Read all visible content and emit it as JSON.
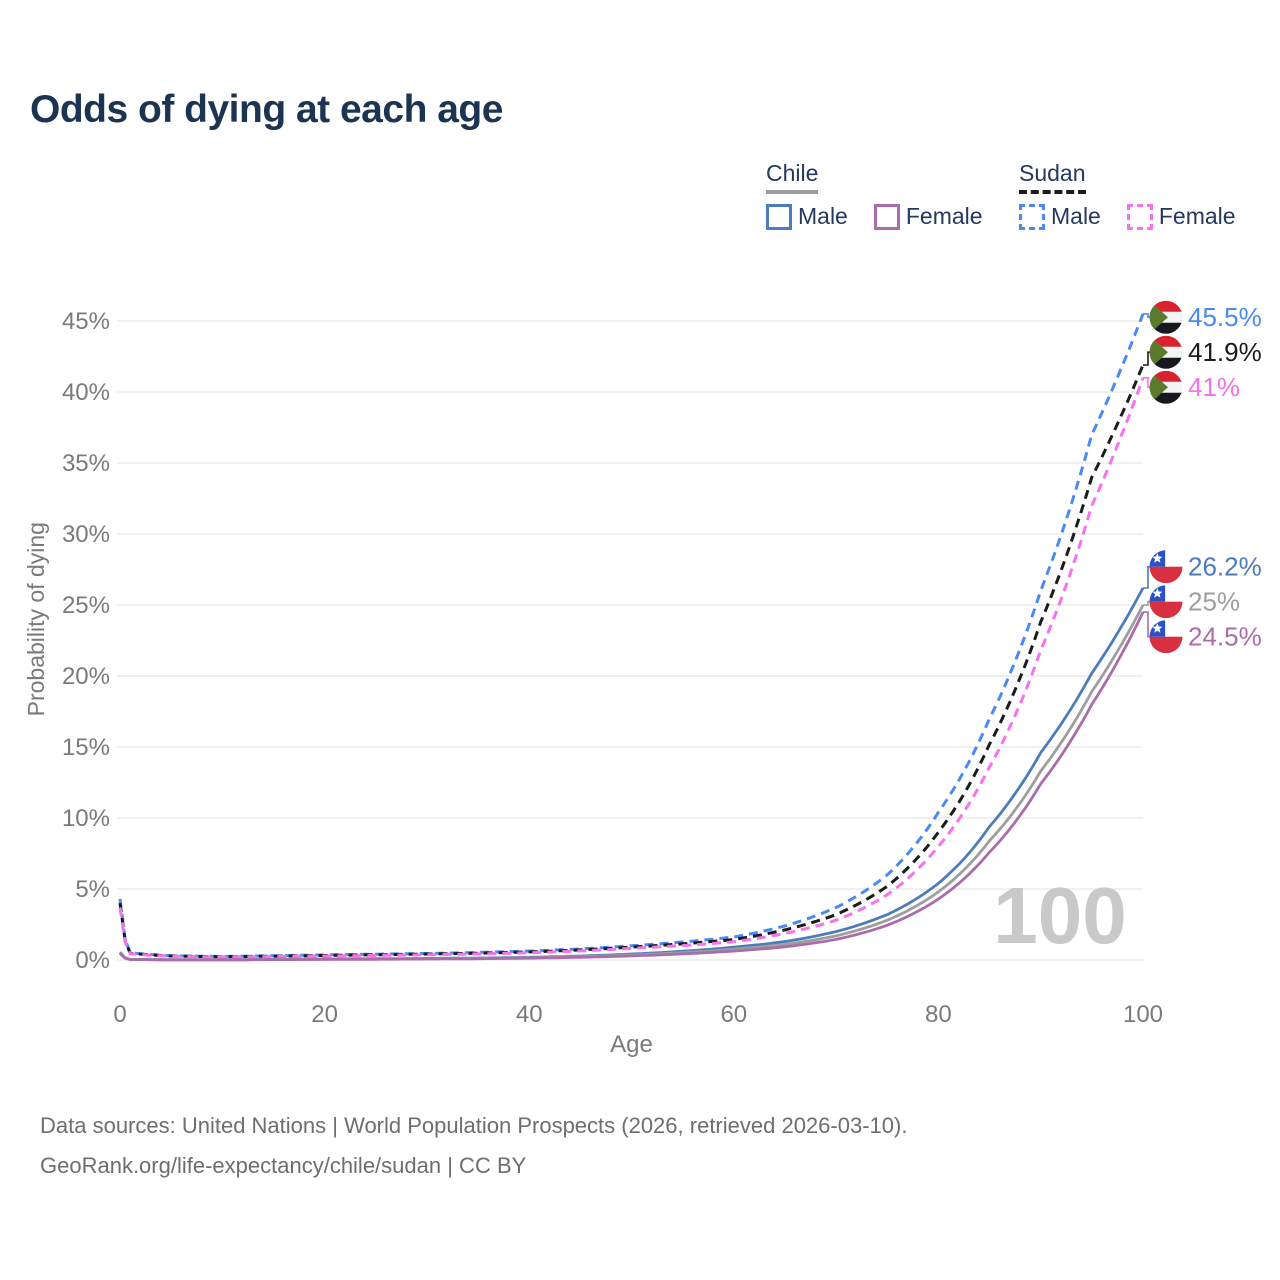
{
  "title": "Odds of dying at each age",
  "watermark": "100",
  "legend": {
    "groups": [
      {
        "name": "Chile",
        "line_style": "solid",
        "items": [
          {
            "label": "Male",
            "color": "#4d7cba"
          },
          {
            "label": "Female",
            "color": "#a96daa"
          }
        ]
      },
      {
        "name": "Sudan",
        "line_style": "dashed",
        "items": [
          {
            "label": "Male",
            "color": "#4a8af4"
          },
          {
            "label": "Female",
            "color": "#f772ec"
          }
        ]
      }
    ]
  },
  "footer": {
    "line1": "Data sources: United Nations | World Population Prospects (2026, retrieved 2026-03-10).",
    "line2": "GeoRank.org/life-expectancy/chile/sudan | CC BY"
  },
  "chart_data": {
    "type": "line",
    "title": "Odds of dying at each age",
    "xlabel": "Age",
    "ylabel": "Probability of dying",
    "xlim": [
      0,
      100
    ],
    "ylim": [
      0,
      45
    ],
    "x_ticks": [
      0,
      20,
      40,
      60,
      80,
      100
    ],
    "y_ticks": [
      0,
      5,
      10,
      15,
      20,
      25,
      30,
      35,
      40,
      45
    ],
    "y_tick_suffix": "%",
    "grid": "horizontal",
    "legend_position": "top-right",
    "ages": [
      0,
      1,
      5,
      10,
      15,
      20,
      25,
      30,
      35,
      40,
      45,
      50,
      55,
      60,
      65,
      70,
      75,
      80,
      85,
      90,
      95,
      100
    ],
    "series": [
      {
        "id": "sudan-male",
        "name": "Sudan Male",
        "country": "Sudan",
        "sex": "Male",
        "color": "#4a8af4",
        "dash": "dashed",
        "flag": "sudan",
        "end_label": "45.5%",
        "values": [
          4.3,
          0.5,
          0.3,
          0.25,
          0.3,
          0.36,
          0.41,
          0.46,
          0.53,
          0.63,
          0.78,
          1.0,
          1.27,
          1.62,
          2.4,
          3.7,
          6.0,
          10.4,
          17.0,
          26.0,
          37.0,
          45.5
        ]
      },
      {
        "id": "sudan-combined",
        "name": "Sudan Both sexes",
        "country": "Sudan",
        "sex": "Combined",
        "color": "#1b1b1b",
        "dash": "dashed",
        "flag": "sudan",
        "end_label": "41.9%",
        "values": [
          4.0,
          0.47,
          0.28,
          0.23,
          0.27,
          0.32,
          0.37,
          0.42,
          0.48,
          0.57,
          0.71,
          0.91,
          1.14,
          1.44,
          2.12,
          3.2,
          5.2,
          9.0,
          15.2,
          23.8,
          34.0,
          41.9
        ]
      },
      {
        "id": "sudan-female",
        "name": "Sudan Female",
        "country": "Sudan",
        "sex": "Female",
        "color": "#f772ec",
        "dash": "dashed",
        "flag": "sudan",
        "end_label": "41%",
        "values": [
          3.7,
          0.44,
          0.26,
          0.21,
          0.24,
          0.28,
          0.32,
          0.37,
          0.43,
          0.51,
          0.64,
          0.82,
          1.02,
          1.28,
          1.87,
          2.8,
          4.6,
          8.0,
          13.6,
          21.8,
          32.0,
          41.0
        ]
      },
      {
        "id": "chile-male",
        "name": "Chile Male",
        "country": "Chile",
        "sex": "Male",
        "color": "#4d7cba",
        "dash": "solid",
        "flag": "chile",
        "end_label": "26.2%",
        "values": [
          0.55,
          0.045,
          0.015,
          0.014,
          0.045,
          0.075,
          0.09,
          0.11,
          0.14,
          0.19,
          0.28,
          0.42,
          0.62,
          0.9,
          1.3,
          2.0,
          3.2,
          5.4,
          9.4,
          14.6,
          20.2,
          26.2
        ]
      },
      {
        "id": "chile-combined",
        "name": "Chile Both sexes",
        "country": "Chile",
        "sex": "Combined",
        "color": "#9e9e9e",
        "dash": "solid",
        "flag": "chile",
        "end_label": "25%",
        "values": [
          0.5,
          0.04,
          0.013,
          0.012,
          0.035,
          0.058,
          0.072,
          0.09,
          0.115,
          0.16,
          0.235,
          0.355,
          0.52,
          0.76,
          1.1,
          1.7,
          2.8,
          4.8,
          8.4,
          13.3,
          18.9,
          25.0
        ]
      },
      {
        "id": "chile-female",
        "name": "Chile Female",
        "country": "Chile",
        "sex": "Female",
        "color": "#a96daa",
        "dash": "solid",
        "flag": "chile",
        "end_label": "24.5%",
        "values": [
          0.45,
          0.036,
          0.012,
          0.011,
          0.027,
          0.04,
          0.052,
          0.07,
          0.09,
          0.13,
          0.19,
          0.29,
          0.43,
          0.63,
          0.93,
          1.45,
          2.45,
          4.3,
          7.6,
          12.4,
          18.0,
          24.5
        ]
      }
    ]
  }
}
